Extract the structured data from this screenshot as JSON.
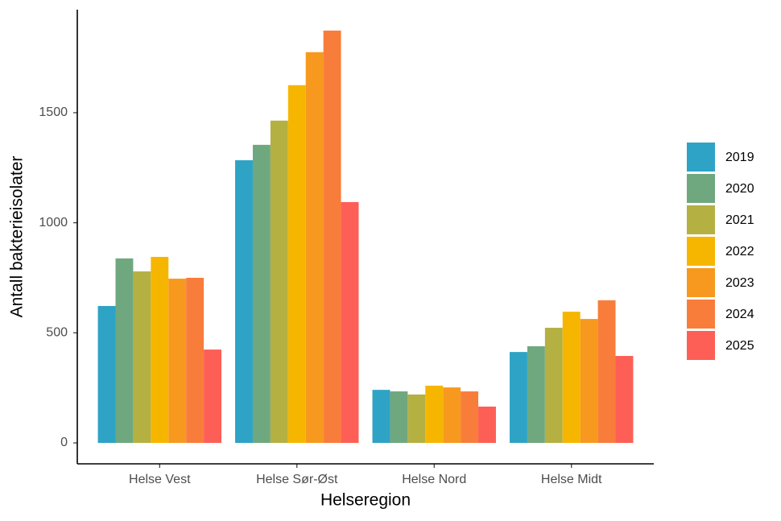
{
  "chart_data": {
    "type": "bar",
    "x_label": "Helseregion",
    "y_label": "Antall bakterieisolater",
    "categories": [
      "Helse Vest",
      "Helse Sør-Øst",
      "Helse Nord",
      "Helse Midt"
    ],
    "series": [
      {
        "name": "2019",
        "color": "#2ea3c5",
        "values": [
          622,
          1284,
          241,
          413
        ]
      },
      {
        "name": "2020",
        "color": "#6fa87f",
        "values": [
          838,
          1354,
          234,
          439
        ]
      },
      {
        "name": "2021",
        "color": "#b5b042",
        "values": [
          779,
          1464,
          220,
          523
        ]
      },
      {
        "name": "2022",
        "color": "#f6b600",
        "values": [
          845,
          1625,
          260,
          596
        ]
      },
      {
        "name": "2023",
        "color": "#f7991e",
        "values": [
          746,
          1775,
          252,
          563
        ]
      },
      {
        "name": "2024",
        "color": "#f97d3a",
        "values": [
          750,
          1873,
          234,
          648
        ]
      },
      {
        "name": "2025",
        "color": "#fd5f56",
        "values": [
          424,
          1094,
          165,
          395
        ]
      }
    ],
    "ylim": [
      -95,
      1968
    ],
    "yticks": [
      0,
      500,
      1000,
      1500
    ],
    "grid": false,
    "legend": "right"
  }
}
